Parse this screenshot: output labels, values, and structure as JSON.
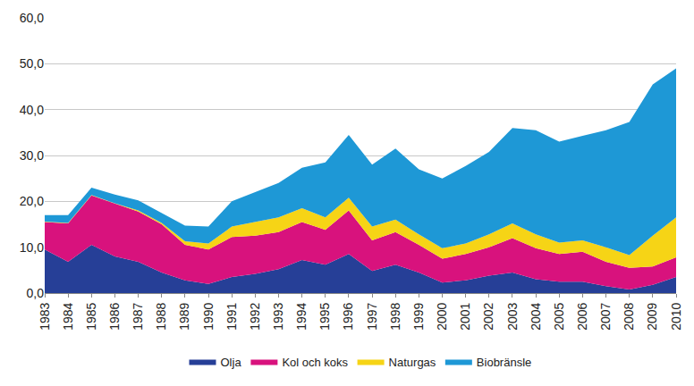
{
  "chart_data": {
    "type": "area",
    "stacked": true,
    "grid": true,
    "legend": "bottom",
    "categories": [
      "1983",
      "1984",
      "1985",
      "1986",
      "1987",
      "1988",
      "1989",
      "1990",
      "1991",
      "1992",
      "1993",
      "1994",
      "1995",
      "1996",
      "1997",
      "1998",
      "1999",
      "2000",
      "2001",
      "2002",
      "2003",
      "2004",
      "2005",
      "2006",
      "2007",
      "2008",
      "2009",
      "2010"
    ],
    "ylim": [
      0,
      60
    ],
    "yticks": [
      {
        "value": 0,
        "label": "0,0"
      },
      {
        "value": 10,
        "label": "10,0"
      },
      {
        "value": 20,
        "label": "20,0"
      },
      {
        "value": 30,
        "label": "30,0"
      },
      {
        "value": 40,
        "label": "40,0"
      },
      {
        "value": 50,
        "label": "50,0"
      },
      {
        "value": 60,
        "label": "60,0"
      }
    ],
    "series": [
      {
        "name": "Olja",
        "color": "#263f97",
        "values": [
          9.5,
          6.8,
          10.5,
          8.0,
          6.8,
          4.5,
          2.8,
          2.0,
          3.5,
          4.2,
          5.2,
          7.2,
          6.2,
          8.5,
          4.8,
          6.2,
          4.5,
          2.3,
          2.8,
          3.8,
          4.5,
          3.0,
          2.5,
          2.5,
          1.5,
          0.8,
          1.8,
          3.5
        ]
      },
      {
        "name": "Kol och koks",
        "color": "#d8127d",
        "values": [
          6.0,
          8.4,
          10.8,
          11.5,
          11.0,
          10.5,
          7.7,
          7.5,
          8.7,
          8.3,
          8.1,
          8.3,
          7.6,
          9.5,
          6.7,
          7.1,
          6.0,
          5.2,
          5.7,
          6.2,
          7.5,
          6.8,
          6.0,
          6.5,
          5.3,
          4.7,
          4.0,
          4.3
        ]
      },
      {
        "name": "Naturgas",
        "color": "#f6d416",
        "values": [
          0.1,
          0.1,
          0.1,
          0.1,
          0.2,
          0.3,
          0.8,
          1.3,
          2.3,
          3.0,
          3.2,
          3.0,
          2.7,
          2.8,
          3.0,
          2.7,
          2.3,
          2.3,
          2.3,
          2.8,
          3.2,
          3.0,
          2.5,
          2.5,
          3.2,
          2.8,
          6.7,
          8.7
        ]
      },
      {
        "name": "Biobränsle",
        "color": "#1e98d6",
        "values": [
          1.4,
          1.7,
          1.6,
          1.9,
          2.2,
          2.2,
          3.4,
          3.7,
          5.5,
          6.5,
          7.5,
          8.8,
          12.0,
          13.7,
          13.5,
          15.5,
          14.2,
          15.2,
          16.9,
          18.0,
          20.8,
          22.7,
          22.0,
          22.8,
          25.5,
          29.0,
          33.0,
          32.5
        ]
      }
    ]
  }
}
